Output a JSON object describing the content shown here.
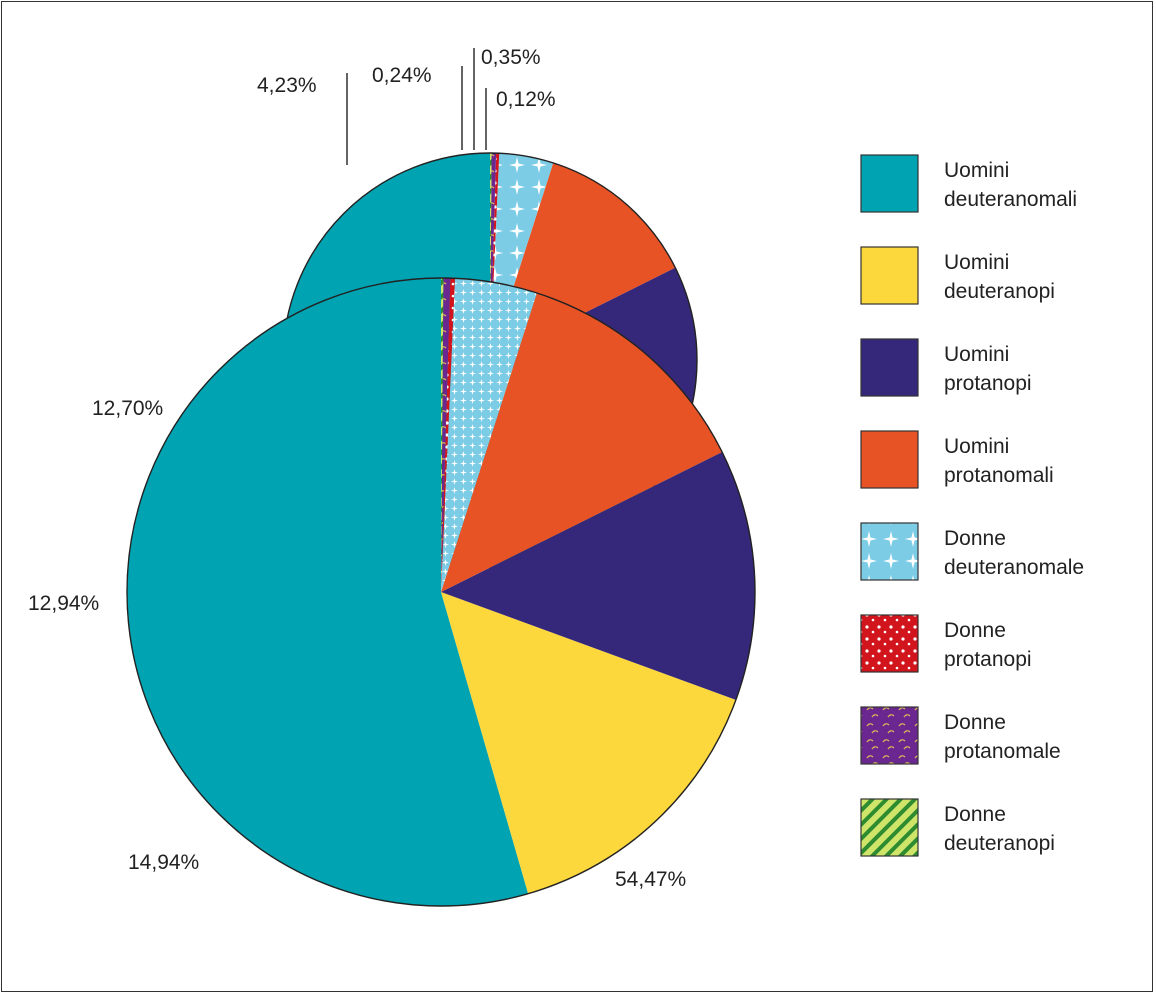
{
  "colors": {
    "uomini_deuteranomali": "#00a3b1",
    "uomini_deuteranopi": "#fdd83d",
    "uomini_protanopi": "#35287a",
    "uomini_protanomali": "#e85325",
    "donne_deuteranomale": "#7ccce6",
    "donne_protanopi": "#d2151d",
    "donne_protanomale": "#6a2790",
    "donne_deuteranopi": "#cfe56a"
  },
  "chart_data": {
    "type": "pie",
    "title": "",
    "legend_position": "right",
    "slices": [
      {
        "key": "uomini_deuteranomali",
        "legend": [
          "Uomini",
          "deuteranomali"
        ],
        "value": 54.47,
        "label": "54,47%",
        "pattern": "solid"
      },
      {
        "key": "uomini_deuteranopi",
        "legend": [
          "Uomini",
          "deuteranopi"
        ],
        "value": 14.94,
        "label": "14,94%",
        "pattern": "solid"
      },
      {
        "key": "uomini_protanopi",
        "legend": [
          "Uomini",
          "protanopi"
        ],
        "value": 12.94,
        "label": "12,94%",
        "pattern": "solid"
      },
      {
        "key": "uomini_protanomali",
        "legend": [
          "Uomini",
          "protanomali"
        ],
        "value": 12.7,
        "label": "12,70%",
        "pattern": "solid"
      },
      {
        "key": "donne_deuteranomale",
        "legend": [
          "Donne",
          "deuteranomale"
        ],
        "value": 4.23,
        "label": "4,23%",
        "pattern": "stars"
      },
      {
        "key": "donne_protanopi",
        "legend": [
          "Donne",
          "protanopi"
        ],
        "value": 0.24,
        "label": "0,24%",
        "pattern": "dots"
      },
      {
        "key": "donne_protanomale",
        "legend": [
          "Donne",
          "protanomale"
        ],
        "value": 0.35,
        "label": "0,35%",
        "pattern": "swirls"
      },
      {
        "key": "donne_deuteranopi",
        "legend": [
          "Donne",
          "deuteranopi"
        ],
        "value": 0.12,
        "label": "0,12%",
        "pattern": "stripes"
      }
    ]
  }
}
